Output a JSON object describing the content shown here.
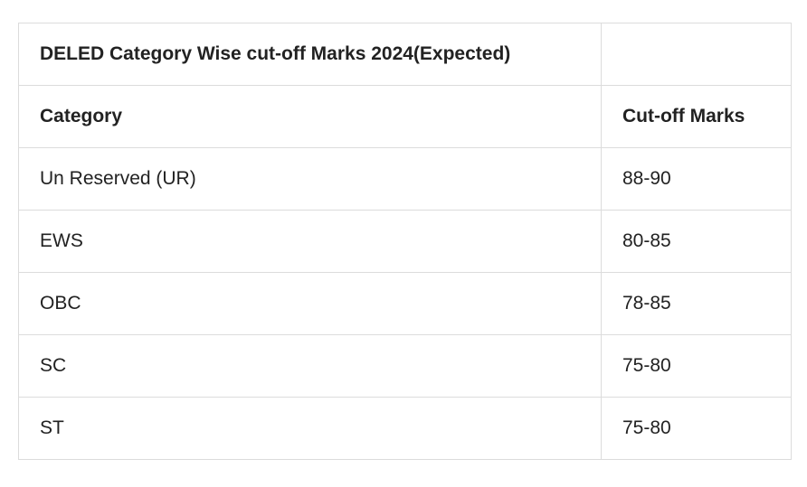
{
  "table": {
    "title": "DELED Category Wise cut-off Marks 2024(Expected)",
    "header": [
      "Category",
      "Cut-off Marks"
    ],
    "rows": [
      [
        "Un Reserved (UR)",
        "88-90"
      ],
      [
        "EWS",
        "80-85"
      ],
      [
        "OBC",
        "78-85"
      ],
      [
        "SC",
        "75-80"
      ],
      [
        "ST",
        "75-80"
      ]
    ]
  }
}
